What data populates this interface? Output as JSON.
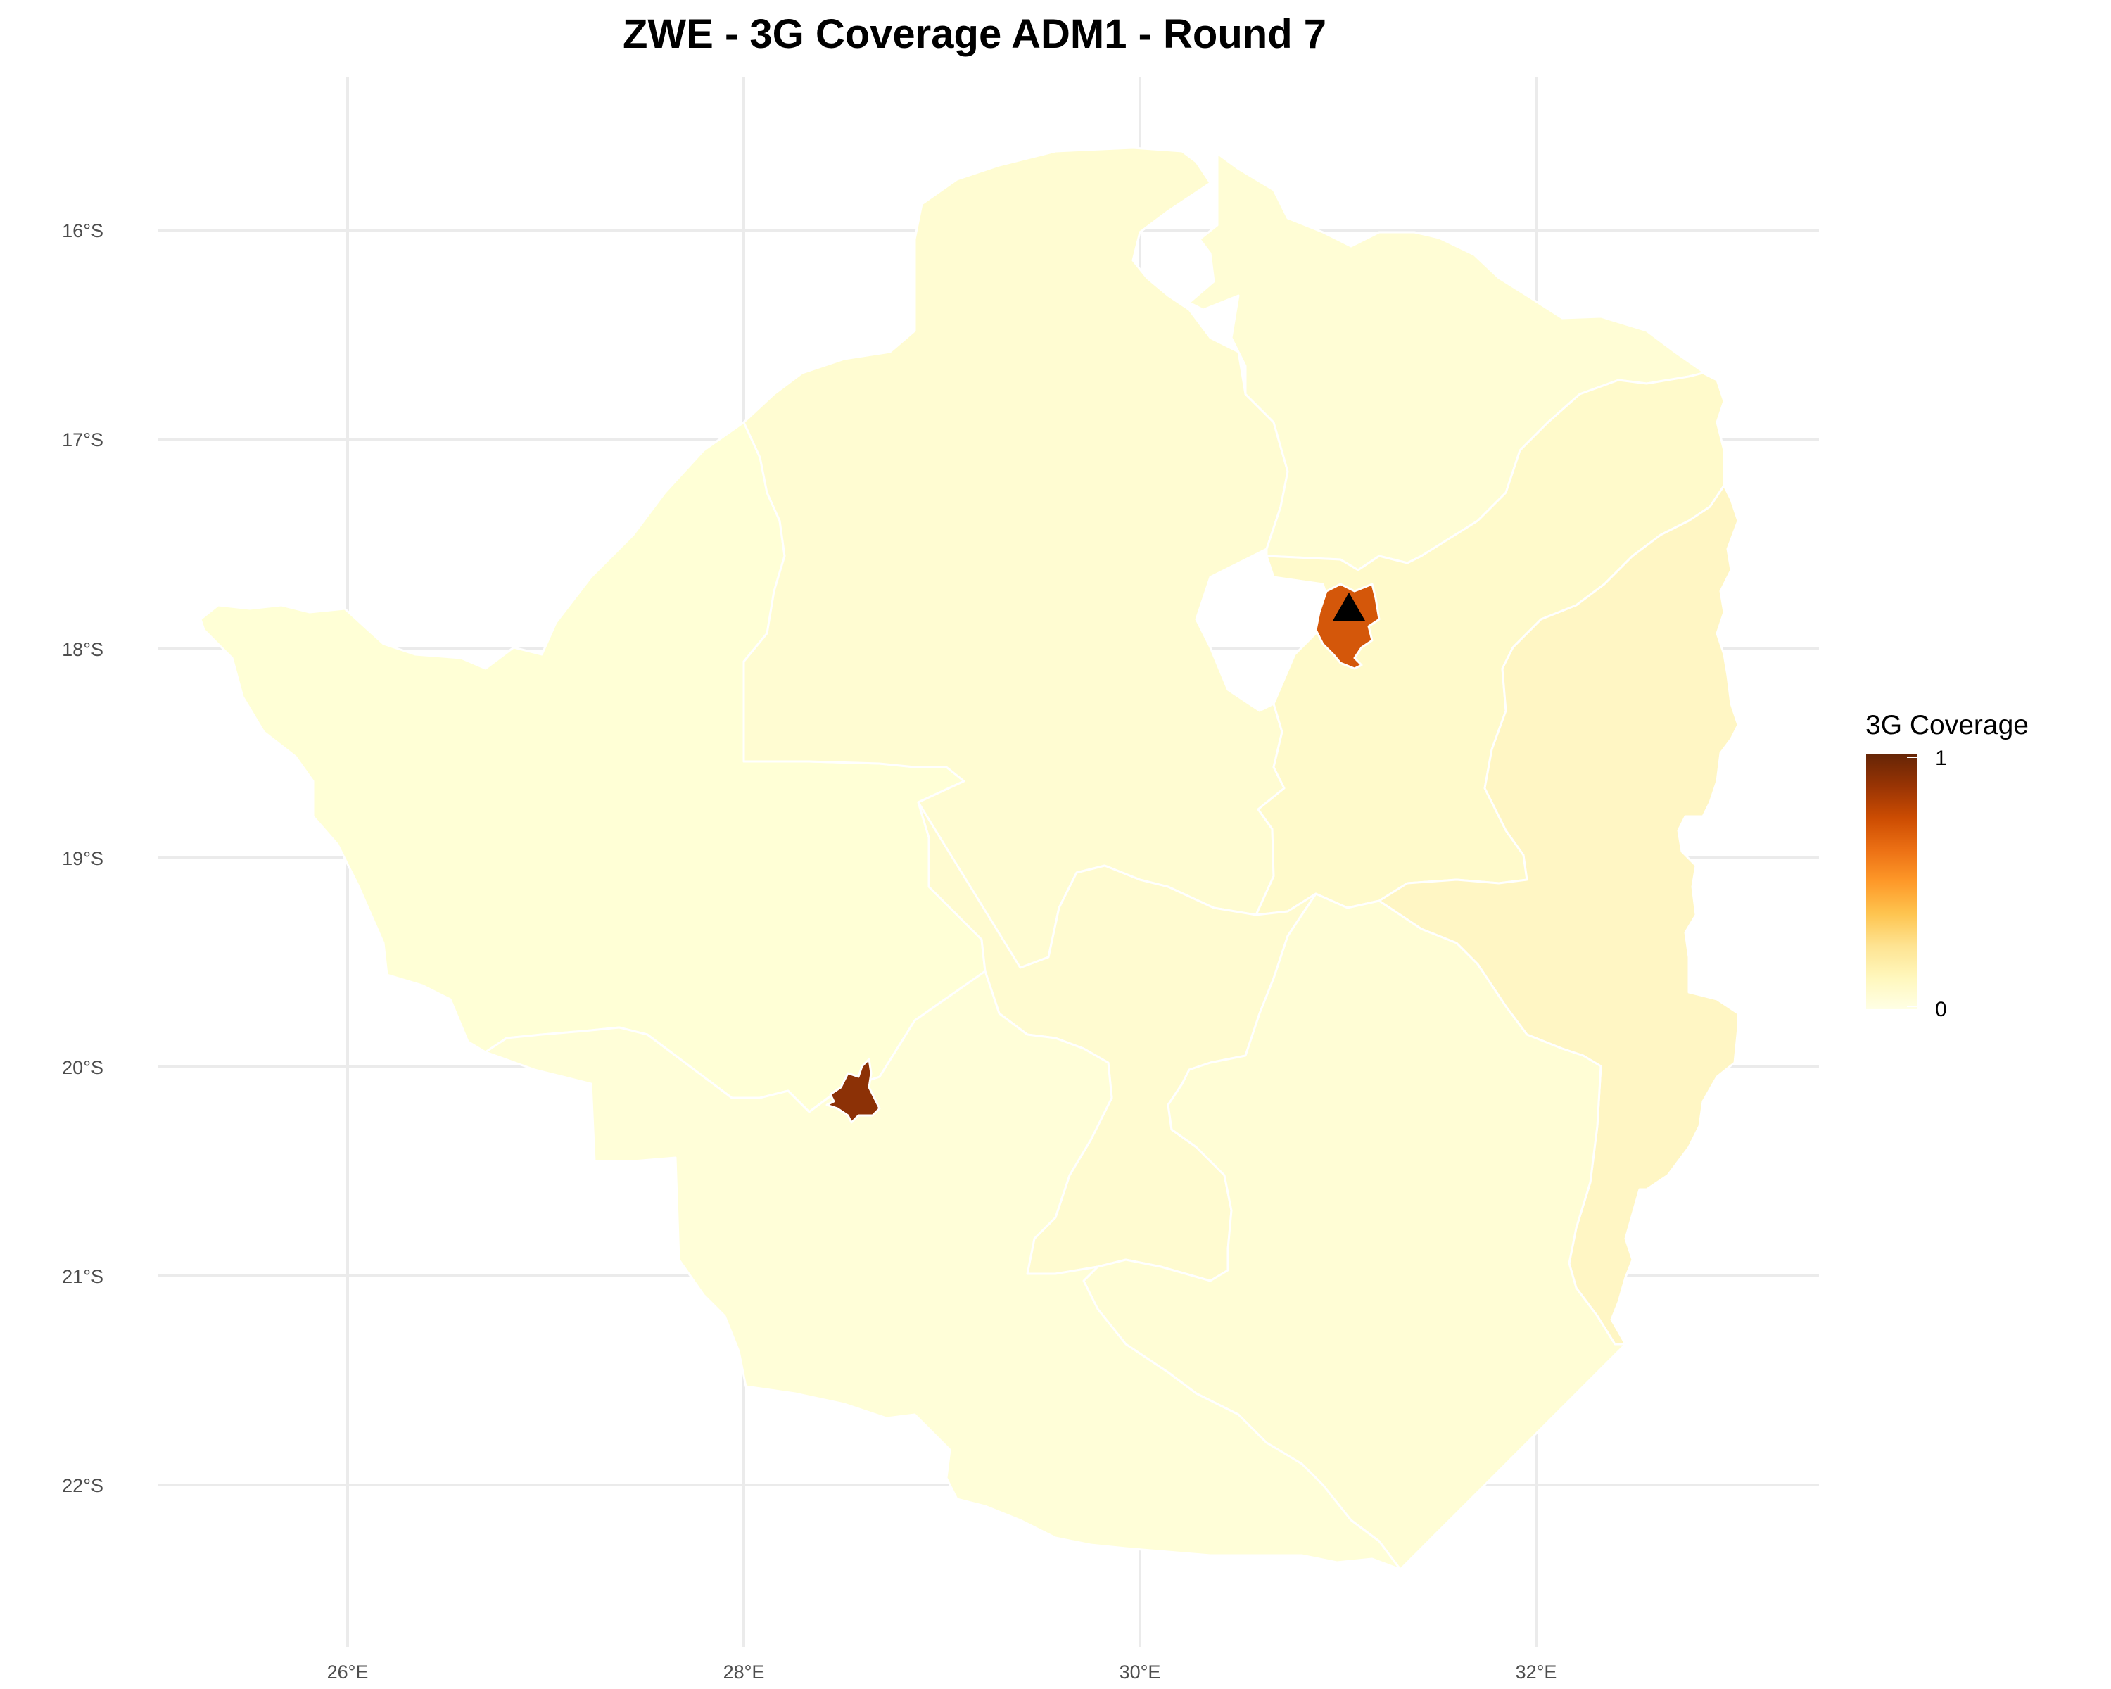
{
  "title": "ZWE - 3G Coverage ADM1 - Round 7",
  "axes": {
    "x_ticks": [
      "26°E",
      "28°E",
      "30°E",
      "32°E"
    ],
    "y_ticks": [
      "16°S",
      "17°S",
      "18°S",
      "19°S",
      "20°S",
      "21°S",
      "22°S"
    ]
  },
  "legend": {
    "title": "3G Coverage",
    "max_label": "1",
    "min_label": "0",
    "placement": "right",
    "colors": [
      "#ffffe5",
      "#fff7bc",
      "#fee391",
      "#fec44f",
      "#fe9929",
      "#ec7014",
      "#cc4c02",
      "#993404",
      "#662506"
    ]
  },
  "chart_data": {
    "type": "choropleth",
    "title": "ZWE - 3G Coverage ADM1 - Round 7",
    "legend_title": "3G Coverage",
    "scale_range": [
      0,
      1
    ],
    "lon_range": [
      24.9,
      33.4
    ],
    "lat_range": [
      -22.7,
      -15.4
    ],
    "regions": [
      {
        "id": "mashonaland-central",
        "value": 0.02,
        "color": "#fffdd5"
      },
      {
        "id": "mashonaland-west",
        "value": 0.04,
        "color": "#fffcd2"
      },
      {
        "id": "mashonaland-east",
        "value": 0.07,
        "color": "#fffacb"
      },
      {
        "id": "manicaland",
        "value": 0.12,
        "color": "#fff6c4"
      },
      {
        "id": "matabeleland-north",
        "value": 0.0,
        "color": "#ffffd6"
      },
      {
        "id": "midlands",
        "value": 0.05,
        "color": "#fffbd0"
      },
      {
        "id": "masvingo",
        "value": 0.02,
        "color": "#fffdd5"
      },
      {
        "id": "matabeleland-south",
        "value": 0.01,
        "color": "#fffed8"
      },
      {
        "id": "harare",
        "value": 0.78,
        "color": "#d4570a"
      },
      {
        "id": "bulawayo",
        "value": 0.98,
        "color": "#8c3106"
      }
    ],
    "markers": [
      {
        "type": "triangle",
        "lon": 31.05,
        "lat": -17.83,
        "color": "#000000"
      }
    ]
  }
}
